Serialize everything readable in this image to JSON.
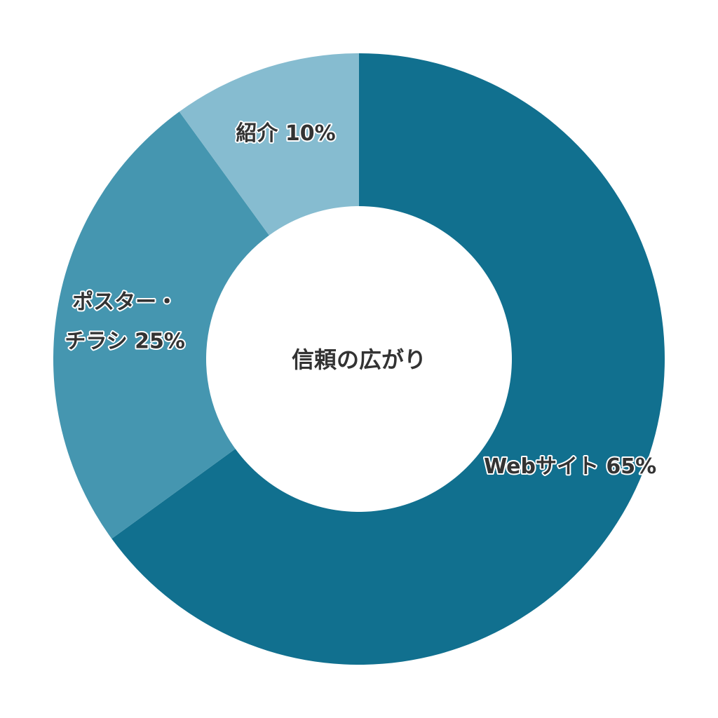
{
  "chart_data": {
    "type": "pie",
    "variant": "donut",
    "center_text": "信頼の広がり",
    "slices": [
      {
        "name": "Webサイト",
        "value": 65,
        "label_lines": [
          "Webサイト 65%"
        ],
        "color": "#11708f"
      },
      {
        "name": "ポスター・チラシ",
        "value": 25,
        "label_lines": [
          "ポスター・",
          "チラシ 25%"
        ],
        "color": "#4596b0"
      },
      {
        "name": "紹介",
        "value": 10,
        "label_lines": [
          "紹介 10%"
        ],
        "color": "#86bcd0"
      }
    ],
    "start": "top",
    "direction": "clockwise",
    "legend": "none"
  }
}
